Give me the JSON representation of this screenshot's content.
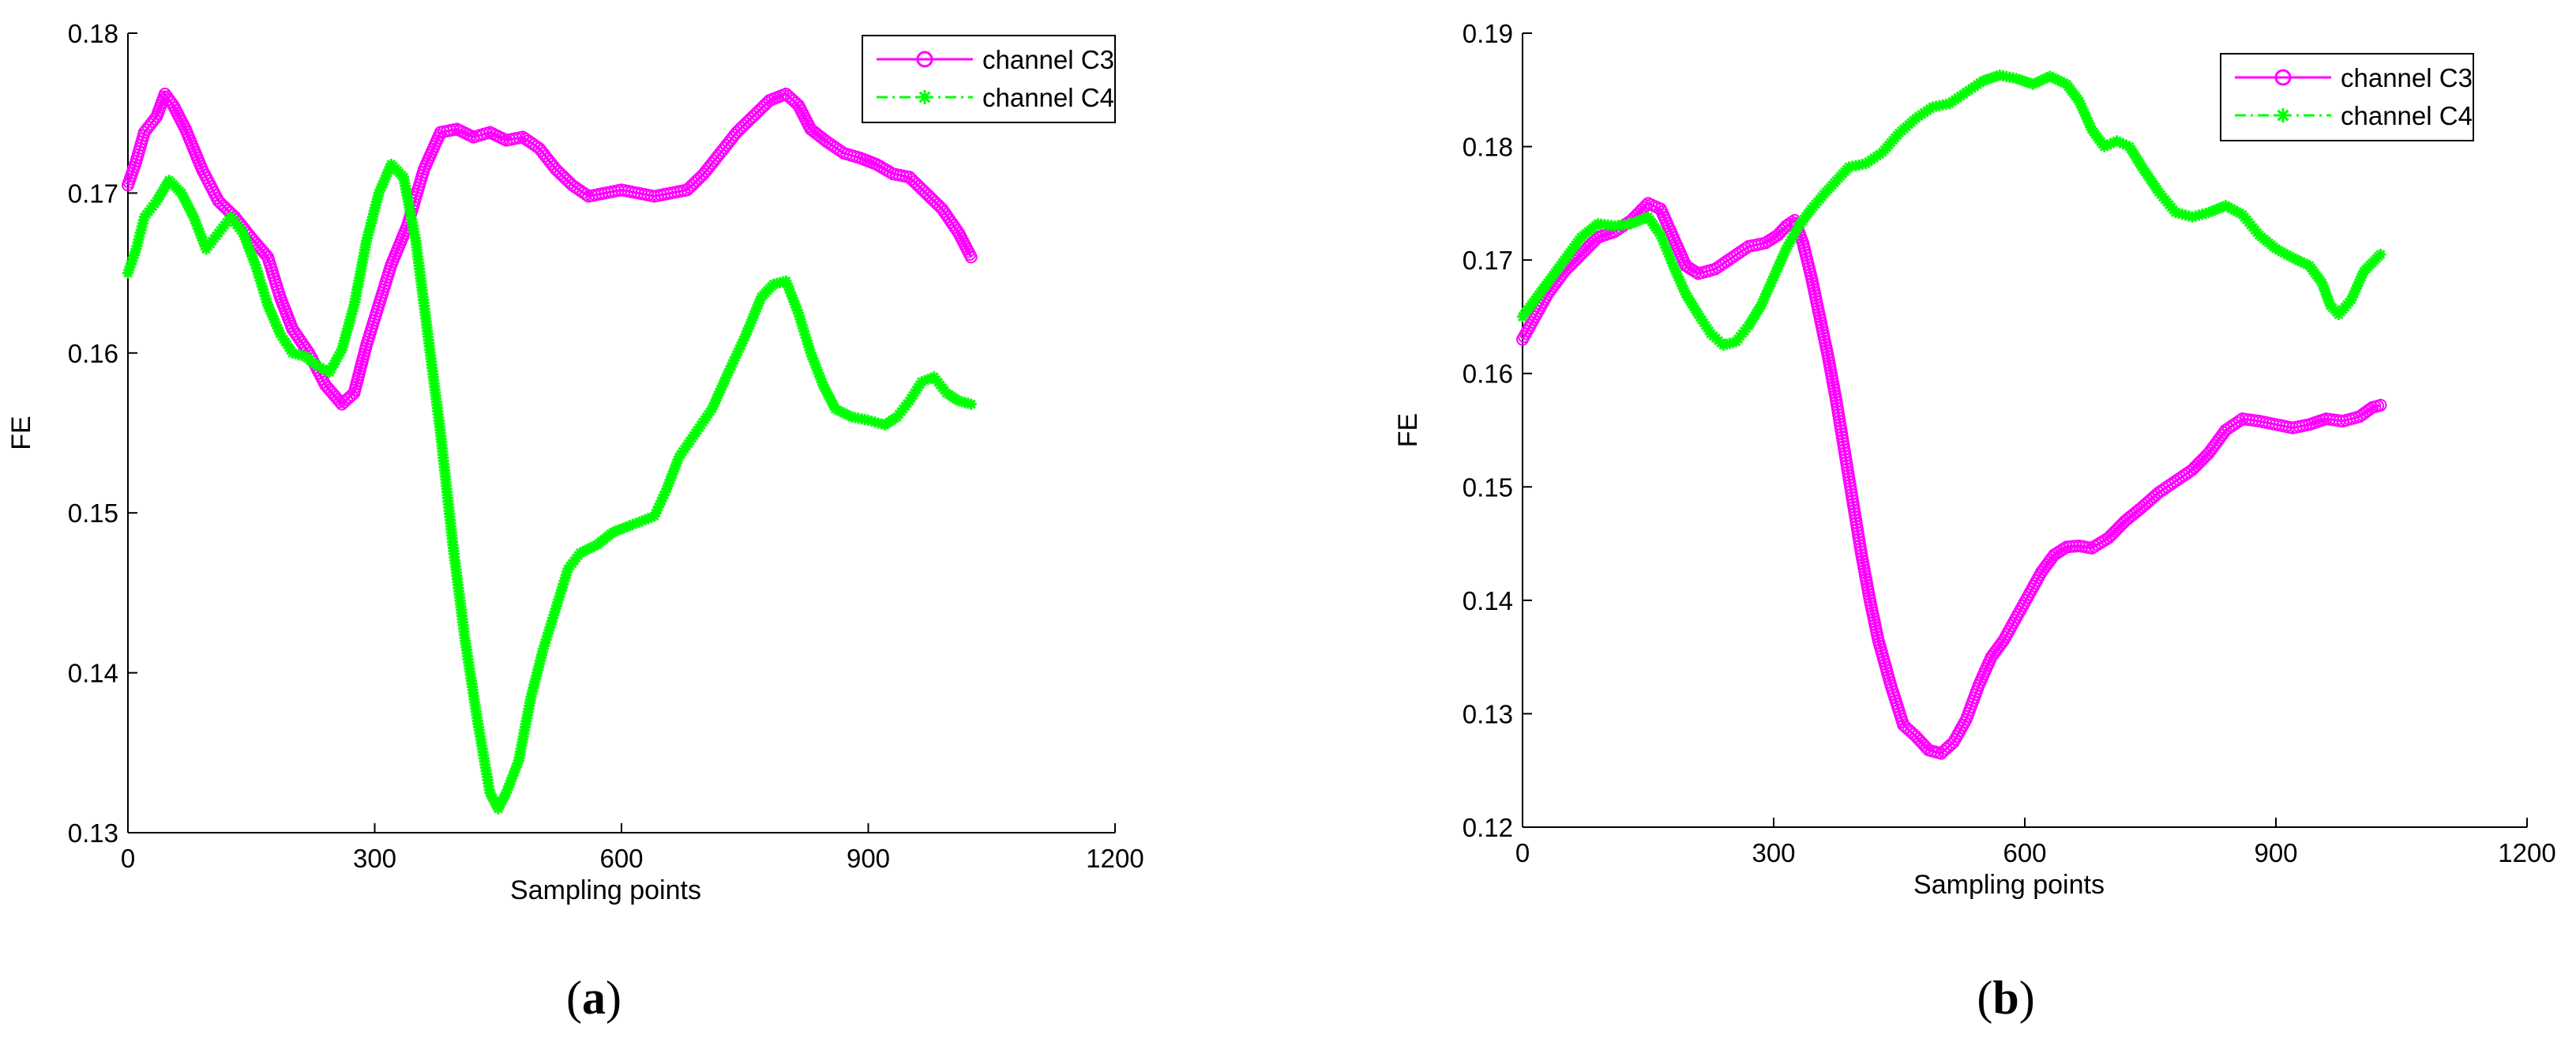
{
  "chart_data": [
    {
      "id": "a",
      "panel_label": "a",
      "type": "line",
      "xlabel": "Sampling points",
      "ylabel": "FE",
      "xlim": [
        0,
        1200
      ],
      "ylim": [
        0.13,
        0.18
      ],
      "xticks": [
        "0",
        "300",
        "600",
        "900",
        "1200"
      ],
      "yticks": [
        "0.13",
        "0.14",
        "0.15",
        "0.16",
        "0.17",
        "0.18"
      ],
      "legend_position": "top-right",
      "grid": false,
      "series": [
        {
          "name": "channel C3",
          "color": "#ff00ff",
          "marker": "circle",
          "line": "solid",
          "points": [
            [
              0,
              0.1705
            ],
            [
              10,
              0.172
            ],
            [
              20,
              0.1738
            ],
            [
              35,
              0.1748
            ],
            [
              45,
              0.1762
            ],
            [
              55,
              0.1755
            ],
            [
              70,
              0.174
            ],
            [
              90,
              0.1715
            ],
            [
              110,
              0.1695
            ],
            [
              130,
              0.1685
            ],
            [
              150,
              0.1672
            ],
            [
              170,
              0.166
            ],
            [
              185,
              0.1635
            ],
            [
              200,
              0.1615
            ],
            [
              220,
              0.16
            ],
            [
              240,
              0.158
            ],
            [
              260,
              0.1568
            ],
            [
              275,
              0.1575
            ],
            [
              290,
              0.1605
            ],
            [
              305,
              0.163
            ],
            [
              320,
              0.1655
            ],
            [
              340,
              0.168
            ],
            [
              360,
              0.1715
            ],
            [
              380,
              0.1738
            ],
            [
              400,
              0.174
            ],
            [
              420,
              0.1735
            ],
            [
              440,
              0.1738
            ],
            [
              460,
              0.1733
            ],
            [
              480,
              0.1735
            ],
            [
              500,
              0.1728
            ],
            [
              520,
              0.1715
            ],
            [
              540,
              0.1705
            ],
            [
              560,
              0.1698
            ],
            [
              580,
              0.17
            ],
            [
              600,
              0.1702
            ],
            [
              620,
              0.17
            ],
            [
              640,
              0.1698
            ],
            [
              660,
              0.17
            ],
            [
              680,
              0.1702
            ],
            [
              700,
              0.1712
            ],
            [
              720,
              0.1725
            ],
            [
              740,
              0.1738
            ],
            [
              760,
              0.1748
            ],
            [
              780,
              0.1758
            ],
            [
              800,
              0.1762
            ],
            [
              815,
              0.1755
            ],
            [
              830,
              0.174
            ],
            [
              850,
              0.1732
            ],
            [
              870,
              0.1725
            ],
            [
              890,
              0.1722
            ],
            [
              910,
              0.1718
            ],
            [
              930,
              0.1712
            ],
            [
              950,
              0.171
            ],
            [
              970,
              0.17
            ],
            [
              990,
              0.169
            ],
            [
              1010,
              0.1675
            ],
            [
              1025,
              0.166
            ]
          ]
        },
        {
          "name": "channel C4",
          "color": "#00ff00",
          "marker": "asterisk",
          "line": "dashdot",
          "points": [
            [
              0,
              0.165
            ],
            [
              10,
              0.1665
            ],
            [
              20,
              0.1685
            ],
            [
              35,
              0.1695
            ],
            [
              50,
              0.1708
            ],
            [
              65,
              0.17
            ],
            [
              80,
              0.1685
            ],
            [
              95,
              0.1665
            ],
            [
              110,
              0.1675
            ],
            [
              125,
              0.1685
            ],
            [
              140,
              0.1675
            ],
            [
              155,
              0.1655
            ],
            [
              170,
              0.163
            ],
            [
              185,
              0.1612
            ],
            [
              200,
              0.16
            ],
            [
              215,
              0.1598
            ],
            [
              230,
              0.1592
            ],
            [
              245,
              0.1588
            ],
            [
              260,
              0.1602
            ],
            [
              275,
              0.163
            ],
            [
              290,
              0.167
            ],
            [
              305,
              0.17
            ],
            [
              320,
              0.1718
            ],
            [
              335,
              0.171
            ],
            [
              350,
              0.167
            ],
            [
              365,
              0.161
            ],
            [
              380,
              0.155
            ],
            [
              395,
              0.148
            ],
            [
              410,
              0.142
            ],
            [
              425,
              0.137
            ],
            [
              440,
              0.1325
            ],
            [
              450,
              0.1315
            ],
            [
              460,
              0.1325
            ],
            [
              475,
              0.1345
            ],
            [
              490,
              0.1385
            ],
            [
              505,
              0.1415
            ],
            [
              520,
              0.144
            ],
            [
              535,
              0.1465
            ],
            [
              550,
              0.1475
            ],
            [
              570,
              0.148
            ],
            [
              590,
              0.1488
            ],
            [
              610,
              0.1492
            ],
            [
              625,
              0.1495
            ],
            [
              640,
              0.1498
            ],
            [
              655,
              0.1515
            ],
            [
              670,
              0.1535
            ],
            [
              690,
              0.155
            ],
            [
              710,
              0.1565
            ],
            [
              730,
              0.1588
            ],
            [
              750,
              0.161
            ],
            [
              770,
              0.1635
            ],
            [
              785,
              0.1643
            ],
            [
              800,
              0.1645
            ],
            [
              815,
              0.1625
            ],
            [
              830,
              0.16
            ],
            [
              845,
              0.158
            ],
            [
              860,
              0.1565
            ],
            [
              880,
              0.156
            ],
            [
              900,
              0.1558
            ],
            [
              920,
              0.1555
            ],
            [
              935,
              0.156
            ],
            [
              950,
              0.157
            ],
            [
              965,
              0.1582
            ],
            [
              980,
              0.1585
            ],
            [
              995,
              0.1575
            ],
            [
              1010,
              0.157
            ],
            [
              1025,
              0.1568
            ]
          ]
        }
      ]
    },
    {
      "id": "b",
      "panel_label": "b",
      "type": "line",
      "xlabel": "Sampling points",
      "ylabel": "FE",
      "xlim": [
        0,
        1200
      ],
      "ylim": [
        0.12,
        0.19
      ],
      "xticks": [
        "0",
        "300",
        "600",
        "900",
        "1200"
      ],
      "yticks": [
        "0.12",
        "0.13",
        "0.14",
        "0.15",
        "0.16",
        "0.17",
        "0.18",
        "0.19"
      ],
      "legend_position": "top-right",
      "grid": false,
      "series": [
        {
          "name": "channel C3",
          "color": "#ff00ff",
          "marker": "circle",
          "line": "solid",
          "points": [
            [
              0,
              0.163
            ],
            [
              15,
              0.165
            ],
            [
              30,
              0.167
            ],
            [
              50,
              0.169
            ],
            [
              70,
              0.1705
            ],
            [
              90,
              0.172
            ],
            [
              110,
              0.1725
            ],
            [
              130,
              0.1735
            ],
            [
              150,
              0.175
            ],
            [
              165,
              0.1745
            ],
            [
              180,
              0.172
            ],
            [
              195,
              0.1695
            ],
            [
              210,
              0.1688
            ],
            [
              230,
              0.1692
            ],
            [
              250,
              0.1702
            ],
            [
              270,
              0.1712
            ],
            [
              290,
              0.1715
            ],
            [
              305,
              0.1722
            ],
            [
              315,
              0.173
            ],
            [
              325,
              0.1735
            ],
            [
              335,
              0.1715
            ],
            [
              345,
              0.1685
            ],
            [
              355,
              0.165
            ],
            [
              365,
              0.1615
            ],
            [
              375,
              0.1575
            ],
            [
              385,
              0.153
            ],
            [
              395,
              0.1485
            ],
            [
              405,
              0.144
            ],
            [
              415,
              0.14
            ],
            [
              425,
              0.1365
            ],
            [
              440,
              0.1325
            ],
            [
              455,
              0.129
            ],
            [
              470,
              0.128
            ],
            [
              485,
              0.1268
            ],
            [
              500,
              0.1265
            ],
            [
              515,
              0.1275
            ],
            [
              530,
              0.1295
            ],
            [
              545,
              0.1325
            ],
            [
              560,
              0.135
            ],
            [
              575,
              0.1365
            ],
            [
              590,
              0.1385
            ],
            [
              605,
              0.1405
            ],
            [
              620,
              0.1425
            ],
            [
              635,
              0.144
            ],
            [
              650,
              0.1447
            ],
            [
              665,
              0.1448
            ],
            [
              680,
              0.1446
            ],
            [
              700,
              0.1455
            ],
            [
              720,
              0.147
            ],
            [
              740,
              0.1482
            ],
            [
              760,
              0.1495
            ],
            [
              780,
              0.1505
            ],
            [
              800,
              0.1515
            ],
            [
              820,
              0.153
            ],
            [
              840,
              0.155
            ],
            [
              860,
              0.156
            ],
            [
              880,
              0.1558
            ],
            [
              900,
              0.1555
            ],
            [
              920,
              0.1552
            ],
            [
              940,
              0.1555
            ],
            [
              960,
              0.156
            ],
            [
              980,
              0.1558
            ],
            [
              1000,
              0.1562
            ],
            [
              1015,
              0.157
            ],
            [
              1025,
              0.1572
            ]
          ]
        },
        {
          "name": "channel C4",
          "color": "#00ff00",
          "marker": "asterisk",
          "line": "dashdot",
          "points": [
            [
              0,
              0.165
            ],
            [
              15,
              0.1665
            ],
            [
              30,
              0.168
            ],
            [
              50,
              0.17
            ],
            [
              70,
              0.172
            ],
            [
              90,
              0.1732
            ],
            [
              110,
              0.173
            ],
            [
              130,
              0.1732
            ],
            [
              150,
              0.1738
            ],
            [
              165,
              0.1722
            ],
            [
              180,
              0.1695
            ],
            [
              195,
              0.167
            ],
            [
              210,
              0.1652
            ],
            [
              225,
              0.1635
            ],
            [
              240,
              0.1625
            ],
            [
              255,
              0.1628
            ],
            [
              270,
              0.1642
            ],
            [
              285,
              0.166
            ],
            [
              300,
              0.1685
            ],
            [
              315,
              0.171
            ],
            [
              330,
              0.173
            ],
            [
              345,
              0.1745
            ],
            [
              360,
              0.1758
            ],
            [
              375,
              0.177
            ],
            [
              390,
              0.1782
            ],
            [
              410,
              0.1785
            ],
            [
              430,
              0.1795
            ],
            [
              450,
              0.1812
            ],
            [
              470,
              0.1825
            ],
            [
              490,
              0.1835
            ],
            [
              510,
              0.1838
            ],
            [
              530,
              0.1848
            ],
            [
              550,
              0.1858
            ],
            [
              570,
              0.1863
            ],
            [
              590,
              0.186
            ],
            [
              610,
              0.1855
            ],
            [
              630,
              0.1862
            ],
            [
              650,
              0.1855
            ],
            [
              665,
              0.184
            ],
            [
              680,
              0.1815
            ],
            [
              695,
              0.18
            ],
            [
              710,
              0.1805
            ],
            [
              725,
              0.18
            ],
            [
              740,
              0.1782
            ],
            [
              760,
              0.176
            ],
            [
              780,
              0.1742
            ],
            [
              800,
              0.1738
            ],
            [
              820,
              0.1742
            ],
            [
              840,
              0.1748
            ],
            [
              860,
              0.174
            ],
            [
              880,
              0.1722
            ],
            [
              900,
              0.171
            ],
            [
              920,
              0.1702
            ],
            [
              940,
              0.1695
            ],
            [
              955,
              0.168
            ],
            [
              965,
              0.166
            ],
            [
              975,
              0.1652
            ],
            [
              990,
              0.1665
            ],
            [
              1005,
              0.169
            ],
            [
              1025,
              0.1705
            ]
          ]
        }
      ]
    }
  ]
}
